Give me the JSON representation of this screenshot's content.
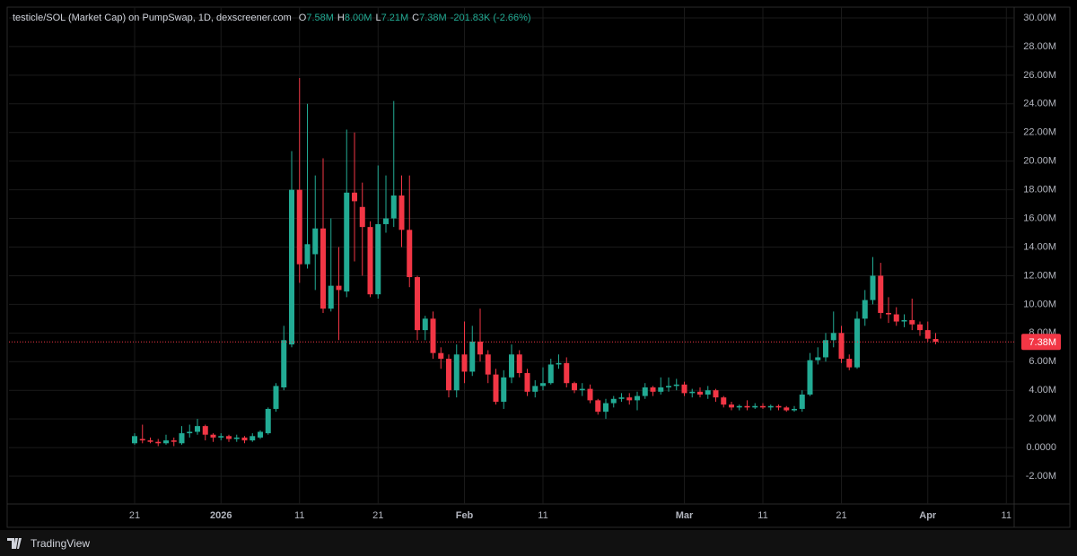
{
  "chart_data": {
    "type": "candlestick",
    "title": "testicle/SOL (Market Cap) on PumpSwap, 1D, dexscreener.com",
    "ohlc_legend": [
      {
        "letter": "O",
        "text": "7.58M"
      },
      {
        "letter": "H",
        "text": "8.00M"
      },
      {
        "letter": "L",
        "text": "7.21M"
      },
      {
        "letter": "C",
        "text": "7.38M"
      }
    ],
    "change": "-201.83K (-2.66%)",
    "brand": "TradingView",
    "up_color": "#22ab94",
    "down_color": "#f23645",
    "grid": true,
    "last_price": 7.38,
    "last_price_label": "7.38M",
    "xlim": [
      -16,
      112
    ],
    "ylim": [
      -3.94,
      30.75
    ],
    "yticks": [
      {
        "value": 30,
        "label": "30.00M"
      },
      {
        "value": 28,
        "label": "28.00M"
      },
      {
        "value": 26,
        "label": "26.00M"
      },
      {
        "value": 24,
        "label": "24.00M"
      },
      {
        "value": 22,
        "label": "22.00M"
      },
      {
        "value": 20,
        "label": "20.00M"
      },
      {
        "value": 18,
        "label": "18.00M"
      },
      {
        "value": 16,
        "label": "16.00M"
      },
      {
        "value": 14,
        "label": "14.00M"
      },
      {
        "value": 12,
        "label": "12.00M"
      },
      {
        "value": 10,
        "label": "10.00M"
      },
      {
        "value": 8,
        "label": "8.00M"
      },
      {
        "value": 6,
        "label": "6.00M"
      },
      {
        "value": 4,
        "label": "4.00M"
      },
      {
        "value": 2,
        "label": "2.00M"
      },
      {
        "value": 0,
        "label": "0.0000"
      },
      {
        "value": -2,
        "label": "-2.00M"
      }
    ],
    "categories": [
      "21",
      null,
      null,
      null,
      null,
      null,
      null,
      null,
      null,
      null,
      null,
      "2026",
      null,
      null,
      null,
      null,
      null,
      null,
      null,
      null,
      null,
      "11",
      null,
      null,
      null,
      null,
      null,
      null,
      null,
      null,
      null,
      "21",
      null,
      null,
      null,
      null,
      null,
      null,
      null,
      null,
      null,
      null,
      "Feb",
      null,
      null,
      null,
      null,
      null,
      null,
      null,
      null,
      null,
      "11",
      null,
      null,
      null,
      null,
      null,
      null,
      null,
      null,
      null,
      null,
      null,
      null,
      null,
      null,
      null,
      null,
      null,
      "Mar",
      null,
      null,
      null,
      null,
      null,
      null,
      null,
      null,
      null,
      "11",
      null,
      null,
      null,
      null,
      null,
      null,
      null,
      null,
      null,
      "21",
      null,
      null,
      null,
      null,
      null,
      null,
      null,
      null,
      null,
      null,
      "Apr",
      null,
      null,
      null,
      null,
      null,
      null,
      null,
      null,
      null,
      "11"
    ],
    "open": [
      0.3,
      0.6,
      0.5,
      0.4,
      0.3,
      0.5,
      0.3,
      1.0,
      1.1,
      1.5,
      0.9,
      0.7,
      0.8,
      0.6,
      0.7,
      0.5,
      0.7,
      1.0,
      2.7,
      4.2,
      7.2,
      18.0,
      12.8,
      13.5,
      15.3,
      9.7,
      11.3,
      10.9,
      17.8,
      16.8,
      15.4,
      10.7,
      15.6,
      16.0,
      17.6,
      15.2,
      11.9,
      8.2,
      9.0,
      6.6,
      6.2,
      4.0,
      6.5,
      5.3,
      7.4,
      6.5,
      5.1,
      3.2,
      4.9,
      6.5,
      5.2,
      3.9,
      4.3,
      4.5,
      5.8,
      5.9,
      4.5,
      4.0,
      4.1,
      3.3,
      2.5,
      3.1,
      3.4,
      3.5,
      3.3,
      3.6,
      4.2,
      3.9,
      4.2,
      4.3,
      4.4,
      3.8,
      3.9,
      3.7,
      4.0,
      3.5,
      3.0,
      2.8,
      2.9,
      2.8,
      2.9,
      2.8,
      2.9,
      2.8,
      2.6,
      2.7,
      3.7,
      6.1,
      6.3,
      7.5,
      8.0,
      6.2,
      5.6,
      9.0,
      10.3,
      12.0,
      9.4,
      9.3,
      8.8,
      8.9,
      8.6,
      8.2,
      7.58,
      null,
      null,
      null,
      null,
      null,
      null,
      null,
      null,
      null
    ],
    "high": [
      1.0,
      1.6,
      0.7,
      0.6,
      0.9,
      0.7,
      1.5,
      1.6,
      2.0,
      1.6,
      1.0,
      1.0,
      0.9,
      0.9,
      0.8,
      1.0,
      1.2,
      2.8,
      4.5,
      8.5,
      20.7,
      25.8,
      24.0,
      19.0,
      20.2,
      16.0,
      14.0,
      22.2,
      22.0,
      18.5,
      15.8,
      19.7,
      19.0,
      24.2,
      19.0,
      19.0,
      12.0,
      9.2,
      9.5,
      7.0,
      6.5,
      7.2,
      8.8,
      8.5,
      9.7,
      6.8,
      5.5,
      5.4,
      7.2,
      6.8,
      5.5,
      4.7,
      5.6,
      6.2,
      6.5,
      6.3,
      4.6,
      4.5,
      4.4,
      3.4,
      3.4,
      3.6,
      3.8,
      3.8,
      3.9,
      4.5,
      4.3,
      4.9,
      4.9,
      4.8,
      4.6,
      4.1,
      4.2,
      4.3,
      4.1,
      3.6,
      3.2,
      3.0,
      3.3,
      3.1,
      3.1,
      3.0,
      3.0,
      2.9,
      2.9,
      4.0,
      6.6,
      7.0,
      8.0,
      9.5,
      8.5,
      6.5,
      9.5,
      11.0,
      13.3,
      12.9,
      10.5,
      9.8,
      9.3,
      10.4,
      8.8,
      8.8,
      8.0,
      null,
      null,
      null,
      null,
      null,
      null,
      null,
      null,
      null
    ],
    "low": [
      0.2,
      0.3,
      0.3,
      0.1,
      0.2,
      0.1,
      0.2,
      0.7,
      0.9,
      0.5,
      0.4,
      0.5,
      0.4,
      0.4,
      0.3,
      0.4,
      0.6,
      0.9,
      2.5,
      4.0,
      7.0,
      11.5,
      12.5,
      11.0,
      9.4,
      9.5,
      7.5,
      10.5,
      13.0,
      12.0,
      10.5,
      10.4,
      15.0,
      15.4,
      14.0,
      11.2,
      7.5,
      7.5,
      6.2,
      5.5,
      3.5,
      3.5,
      4.5,
      5.0,
      6.0,
      4.5,
      3.0,
      2.7,
      4.5,
      4.9,
      3.6,
      3.5,
      4.0,
      4.4,
      5.5,
      4.2,
      3.8,
      3.6,
      3.1,
      2.3,
      2.0,
      2.8,
      3.2,
      3.0,
      2.6,
      3.4,
      3.6,
      3.7,
      3.9,
      4.0,
      3.6,
      3.5,
      3.5,
      3.4,
      3.2,
      2.8,
      2.6,
      2.6,
      2.6,
      2.7,
      2.7,
      2.6,
      2.6,
      2.5,
      2.5,
      2.5,
      3.6,
      5.8,
      6.0,
      7.0,
      5.9,
      5.4,
      5.5,
      8.5,
      10.0,
      9.0,
      8.7,
      8.5,
      8.4,
      8.2,
      7.8,
      7.4,
      7.21,
      null,
      null,
      null,
      null,
      null,
      null,
      null,
      null,
      null
    ],
    "close": [
      0.8,
      0.5,
      0.4,
      0.3,
      0.5,
      0.4,
      1.0,
      1.1,
      1.5,
      0.9,
      0.7,
      0.8,
      0.6,
      0.7,
      0.5,
      0.8,
      1.1,
      2.7,
      4.3,
      7.5,
      18.0,
      12.8,
      14.2,
      15.3,
      9.7,
      11.3,
      11.0,
      17.8,
      17.2,
      15.4,
      10.7,
      15.6,
      16.0,
      17.6,
      15.2,
      11.9,
      8.2,
      9.0,
      6.6,
      6.2,
      4.0,
      6.5,
      5.3,
      7.4,
      6.5,
      5.1,
      3.2,
      4.9,
      6.5,
      5.2,
      3.9,
      4.3,
      4.5,
      5.8,
      5.9,
      4.5,
      4.0,
      4.1,
      3.3,
      2.5,
      3.1,
      3.4,
      3.5,
      3.3,
      3.6,
      4.2,
      3.9,
      4.2,
      4.3,
      4.4,
      3.8,
      3.9,
      3.7,
      4.0,
      3.5,
      3.0,
      2.8,
      2.9,
      2.8,
      2.9,
      2.8,
      2.9,
      2.8,
      2.6,
      2.7,
      3.7,
      6.1,
      6.3,
      7.5,
      8.0,
      6.2,
      5.6,
      9.0,
      10.3,
      12.0,
      9.4,
      9.3,
      8.8,
      8.9,
      8.6,
      8.2,
      7.6,
      7.38,
      null,
      null,
      null,
      null,
      null,
      null,
      null,
      null,
      null
    ]
  }
}
